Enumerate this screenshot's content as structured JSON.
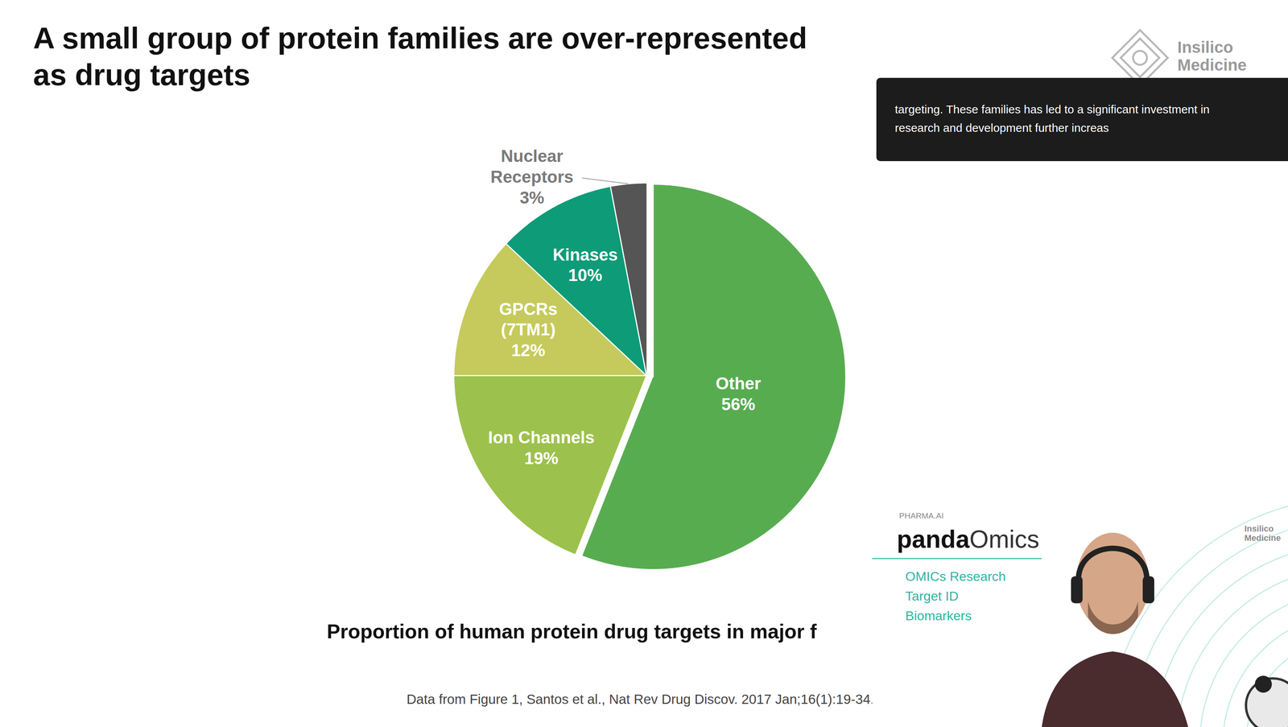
{
  "chart_data": {
    "type": "pie",
    "title": "A small group of protein families are over-represented\nas drug targets",
    "subtitle": "Proportion of human protein drug targets in major f",
    "categories": [
      "Other",
      "Ion Channels",
      "GPCRs\n(7TM1)",
      "Kinases",
      "Nuclear\nReceptors"
    ],
    "values": [
      56,
      19,
      12,
      10,
      3
    ],
    "value_labels": [
      "56%",
      "19%",
      "12%",
      "10%",
      "3%"
    ],
    "colors": [
      "#58ac50",
      "#9dc14d",
      "#c6ca5c",
      "#0e9b78",
      "#555555"
    ],
    "data_labels": true,
    "source": "Data from Figure 1, Santos et al., Nat Rev Drug Discov. 2017 Jan;16(1):19-34.",
    "overlay_caption": "targeting. These families has led to a significant investment in\nresearch and development further increas",
    "logo": "Insilico\nMedicine",
    "panel_label": "PHARMA.AI",
    "panel_name": [
      "panda",
      "Omics"
    ],
    "panel_items": [
      "OMICs Research",
      "Target ID",
      "Biomarkers"
    ]
  }
}
